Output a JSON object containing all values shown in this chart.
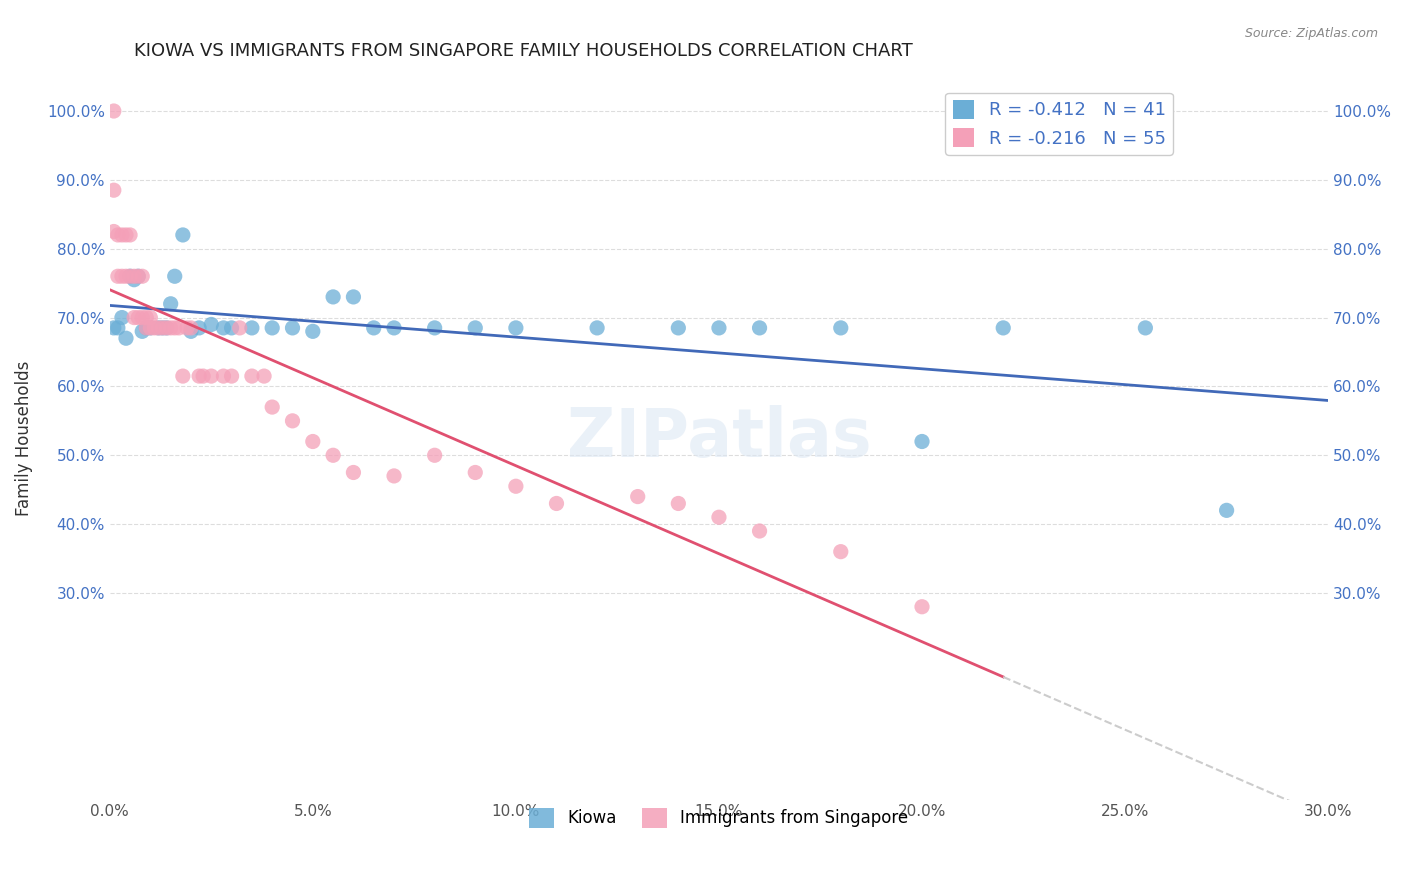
{
  "title": "KIOWA VS IMMIGRANTS FROM SINGAPORE FAMILY HOUSEHOLDS CORRELATION CHART",
  "source": "Source: ZipAtlas.com",
  "ylabel": "Family Households",
  "x_min": 0.0,
  "x_max": 0.3,
  "y_min": 0.0,
  "y_max": 1.05,
  "y_ticks": [
    0.3,
    0.4,
    0.5,
    0.6,
    0.7,
    0.8,
    0.9,
    1.0
  ],
  "y_tick_labels": [
    "30.0%",
    "40.0%",
    "50.0%",
    "60.0%",
    "70.0%",
    "80.0%",
    "90.0%",
    "100.0%"
  ],
  "x_tick_labels": [
    "0.0%",
    "5.0%",
    "10.0%",
    "15.0%",
    "20.0%",
    "25.0%",
    "30.0%"
  ],
  "x_ticks": [
    0.0,
    0.05,
    0.1,
    0.15,
    0.2,
    0.25,
    0.3
  ],
  "kiowa_color": "#6baed6",
  "singapore_color": "#f4a0b8",
  "trendline_kiowa_color": "#4169b8",
  "trendline_singapore_color": "#e05070",
  "trendline_ext_color": "#cccccc",
  "watermark": "ZIPatlas",
  "legend_box_label1": "R = -0.412   N = 41",
  "legend_box_label2": "R = -0.216   N = 55",
  "kiowa_x": [
    0.001,
    0.002,
    0.003,
    0.004,
    0.005,
    0.006,
    0.007,
    0.008,
    0.009,
    0.01,
    0.012,
    0.013,
    0.014,
    0.015,
    0.016,
    0.018,
    0.02,
    0.022,
    0.025,
    0.028,
    0.03,
    0.035,
    0.04,
    0.045,
    0.05,
    0.055,
    0.06,
    0.065,
    0.07,
    0.08,
    0.09,
    0.1,
    0.12,
    0.14,
    0.15,
    0.16,
    0.18,
    0.2,
    0.22,
    0.255,
    0.275
  ],
  "kiowa_y": [
    0.685,
    0.685,
    0.7,
    0.67,
    0.76,
    0.755,
    0.76,
    0.68,
    0.685,
    0.685,
    0.685,
    0.685,
    0.685,
    0.72,
    0.76,
    0.82,
    0.68,
    0.685,
    0.69,
    0.685,
    0.685,
    0.685,
    0.685,
    0.685,
    0.68,
    0.73,
    0.73,
    0.685,
    0.685,
    0.685,
    0.685,
    0.685,
    0.685,
    0.685,
    0.685,
    0.685,
    0.685,
    0.52,
    0.685,
    0.685,
    0.42
  ],
  "singapore_x": [
    0.001,
    0.001,
    0.001,
    0.002,
    0.002,
    0.003,
    0.003,
    0.004,
    0.004,
    0.005,
    0.005,
    0.006,
    0.006,
    0.007,
    0.007,
    0.008,
    0.008,
    0.009,
    0.009,
    0.01,
    0.01,
    0.011,
    0.012,
    0.013,
    0.014,
    0.015,
    0.016,
    0.017,
    0.018,
    0.019,
    0.02,
    0.022,
    0.023,
    0.025,
    0.028,
    0.03,
    0.032,
    0.035,
    0.038,
    0.04,
    0.045,
    0.05,
    0.055,
    0.06,
    0.07,
    0.08,
    0.09,
    0.1,
    0.11,
    0.13,
    0.14,
    0.15,
    0.16,
    0.18,
    0.2
  ],
  "singapore_y": [
    1.0,
    0.885,
    0.825,
    0.82,
    0.76,
    0.82,
    0.76,
    0.82,
    0.76,
    0.82,
    0.76,
    0.76,
    0.7,
    0.76,
    0.7,
    0.76,
    0.7,
    0.7,
    0.685,
    0.7,
    0.685,
    0.685,
    0.685,
    0.685,
    0.685,
    0.685,
    0.685,
    0.685,
    0.615,
    0.685,
    0.685,
    0.615,
    0.615,
    0.615,
    0.615,
    0.615,
    0.685,
    0.615,
    0.615,
    0.57,
    0.55,
    0.52,
    0.5,
    0.475,
    0.47,
    0.5,
    0.475,
    0.455,
    0.43,
    0.44,
    0.43,
    0.41,
    0.39,
    0.36,
    0.28
  ]
}
